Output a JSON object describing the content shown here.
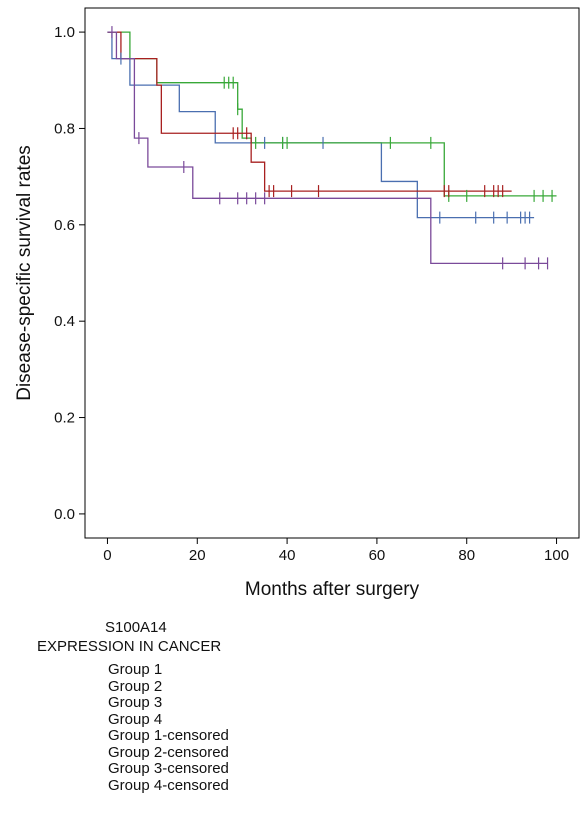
{
  "chart_data": {
    "type": "line",
    "title": "",
    "xlabel": "Months after surgery",
    "ylabel": "Disease-specific survival rates",
    "xlim": [
      -5,
      105
    ],
    "ylim": [
      -0.05,
      1.05
    ],
    "x_ticks": [
      0,
      20,
      40,
      60,
      80,
      100
    ],
    "y_ticks": [
      "0.0",
      "0.2",
      "0.4",
      "0.6",
      "0.8",
      "1.0"
    ],
    "grid": false,
    "legend": {
      "placement": "below",
      "title": [
        "S100A14",
        "EXPRESSION IN CANCER"
      ],
      "entries": [
        "Group 1",
        "Group 2",
        "Group 3",
        "Group 4",
        "Group 1-censored",
        "Group 2-censored",
        "Group 3-censored",
        "Group 4-censored"
      ]
    },
    "series": [
      {
        "name": "Group 1",
        "color": "#4a6fb0",
        "steps": [
          [
            0,
            1.0
          ],
          [
            1,
            0.945
          ],
          [
            5,
            0.89
          ],
          [
            16,
            0.835
          ],
          [
            24,
            0.77
          ],
          [
            61,
            0.69
          ],
          [
            69,
            0.615
          ],
          [
            95,
            0.615
          ]
        ],
        "censored": [
          3,
          35,
          39,
          48,
          74,
          82,
          86,
          89,
          92,
          93,
          94
        ]
      },
      {
        "name": "Group 2",
        "color": "#38a838",
        "steps": [
          [
            0,
            1.0
          ],
          [
            5,
            0.945
          ],
          [
            11,
            0.895
          ],
          [
            29,
            0.84
          ],
          [
            30,
            0.78
          ],
          [
            32,
            0.77
          ],
          [
            75,
            0.66
          ],
          [
            100,
            0.66
          ]
        ],
        "censored": [
          26,
          27,
          28,
          29,
          33,
          39,
          40,
          63,
          72,
          76,
          80,
          95,
          97,
          99
        ]
      },
      {
        "name": "Group 3",
        "color": "#a82020",
        "steps": [
          [
            0,
            1.0
          ],
          [
            3,
            0.945
          ],
          [
            11,
            0.89
          ],
          [
            12,
            0.79
          ],
          [
            32,
            0.73
          ],
          [
            35,
            0.67
          ],
          [
            90,
            0.67
          ]
        ],
        "censored": [
          28,
          29,
          31,
          36,
          37,
          41,
          47,
          75,
          76,
          84,
          86,
          87,
          88
        ]
      },
      {
        "name": "Group 4",
        "color": "#7a4a9a",
        "steps": [
          [
            0,
            1.0
          ],
          [
            2,
            0.945
          ],
          [
            6,
            0.78
          ],
          [
            9,
            0.72
          ],
          [
            19,
            0.655
          ],
          [
            72,
            0.52
          ],
          [
            98,
            0.52
          ]
        ],
        "censored": [
          1,
          7,
          17,
          25,
          29,
          31,
          33,
          35,
          88,
          93,
          96,
          98
        ]
      }
    ]
  }
}
